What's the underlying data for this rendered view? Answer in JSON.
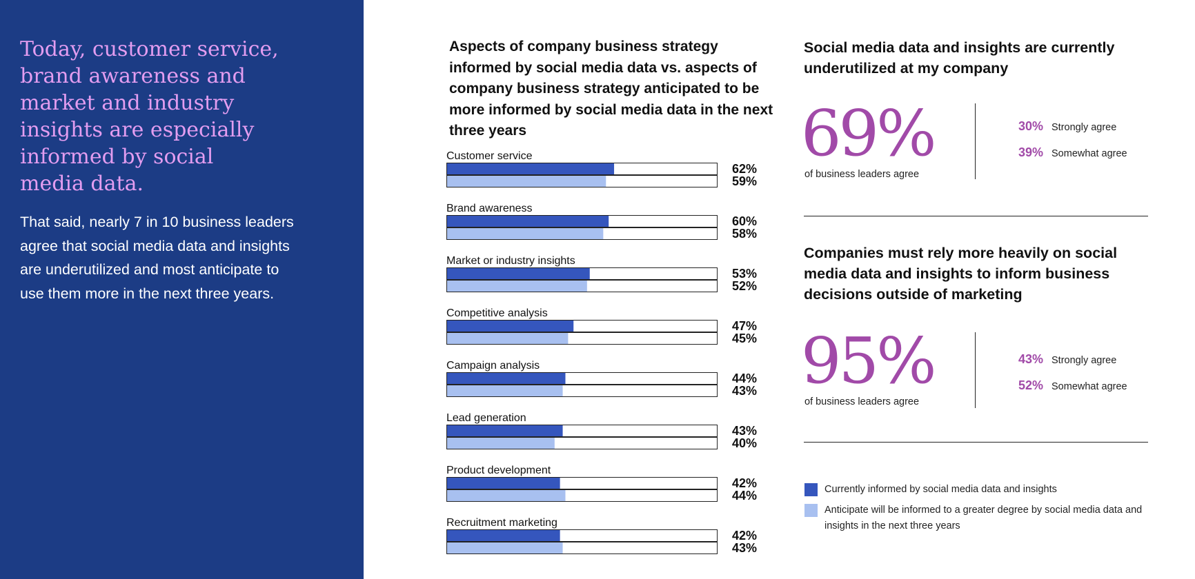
{
  "left": {
    "headline": "Today, customer service, brand awareness and market and industry insights are especially informed by social media data.",
    "body": "That said, nearly 7 in 10 business leaders agree that social media data and insights are underutilized and most anticipate to use them more in the next three years."
  },
  "chart_data": {
    "type": "bar",
    "title": "Aspects of company business strategy informed by social media data vs. aspects of company business strategy anticipated to be more informed by social media data in the next three years",
    "categories": [
      "Customer service",
      "Brand awareness",
      "Market or industry insights",
      "Competitive analysis",
      "Campaign analysis",
      "Lead generation",
      "Product development",
      "Recruitment marketing"
    ],
    "series": [
      {
        "name": "Currently informed by social media data and insights",
        "color": "#3556bd",
        "values": [
          62,
          60,
          53,
          47,
          44,
          43,
          42,
          42
        ]
      },
      {
        "name": "Anticipate will be informed to a greater degree by social media data and insights in the next three years",
        "color": "#a8c0f0",
        "values": [
          59,
          58,
          52,
          45,
          43,
          40,
          44,
          43
        ]
      }
    ],
    "value_suffix": "%",
    "xlim": [
      0,
      100
    ],
    "orientation": "horizontal"
  },
  "stat1": {
    "title": "Social media data and insights are currently underutilized at my company",
    "big_value": "69%",
    "sub": "of business leaders agree",
    "breakdown": [
      {
        "value": "30%",
        "label": "Strongly agree"
      },
      {
        "value": "39%",
        "label": "Somewhat agree"
      }
    ]
  },
  "stat2": {
    "title": "Companies must rely more heavily on social media data and insights to inform business decisions outside of marketing",
    "big_value": "95%",
    "sub": "of business leaders agree",
    "breakdown": [
      {
        "value": "43%",
        "label": "Strongly agree"
      },
      {
        "value": "52%",
        "label": "Somewhat agree"
      }
    ]
  },
  "legend": [
    {
      "label": "Currently informed by social media data and insights",
      "color": "#3556bd"
    },
    {
      "label": "Anticipate will be informed to a greater degree by social media data and insights in the next three years",
      "color": "#a8c0f0"
    }
  ],
  "colors": {
    "left_panel_bg": "#1c3c85",
    "headline": "#e39df0",
    "accent_purple": "#a14aa8"
  }
}
